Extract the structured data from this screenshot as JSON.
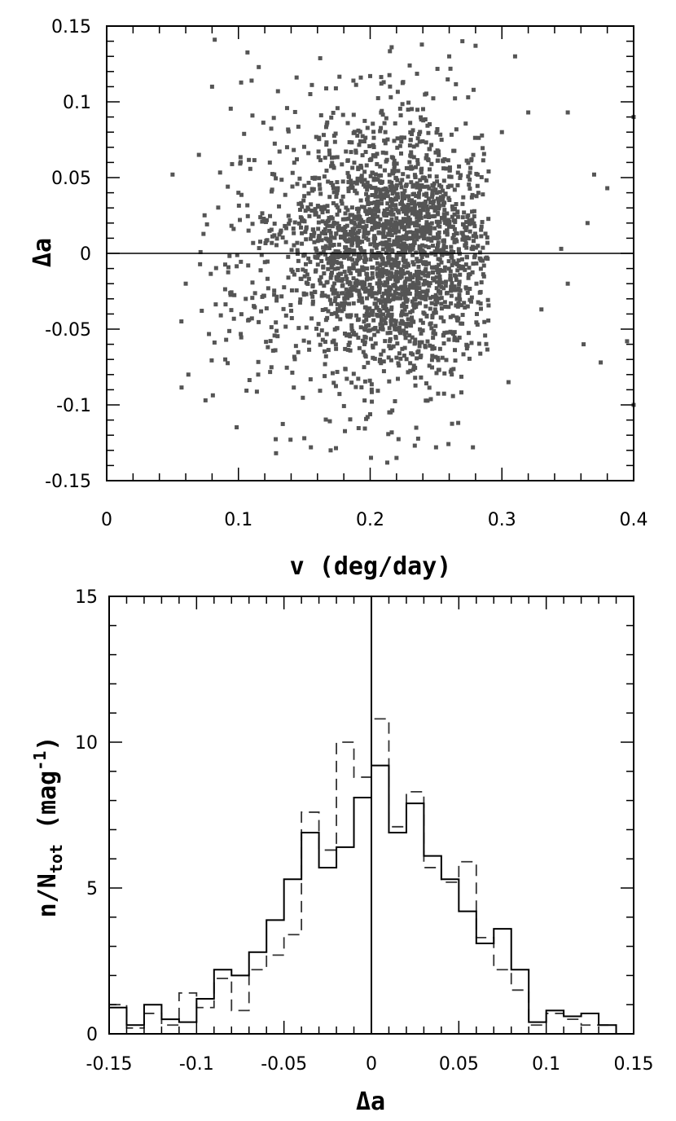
{
  "chart_data": [
    {
      "type": "scatter",
      "xlabel": "v (deg/day)",
      "ylabel": "Δa",
      "xlim": [
        0,
        0.4
      ],
      "ylim": [
        -0.15,
        0.15
      ],
      "x_ticks": [
        "0",
        "0.1",
        "0.2",
        "0.3",
        "0.4"
      ],
      "y_ticks": [
        "-0.15",
        "-0.1",
        "-0.05",
        "0",
        "0.05",
        "0.1",
        "0.15"
      ],
      "reference_line": {
        "axis": "y",
        "value": 0
      },
      "grid": false,
      "legend": "none",
      "marker_color": "#555555",
      "point_count_estimate": 2400,
      "point_distribution": {
        "core": {
          "x_mean": 0.225,
          "x_sd": 0.035,
          "y_mean": 0.005,
          "y_sd": 0.04,
          "share": 0.6
        },
        "broad": {
          "x_mean": 0.2,
          "x_sd": 0.055,
          "y_mean": 0.0,
          "y_sd": 0.05,
          "share": 0.4
        }
      },
      "points_sample": [
        [
          0.05,
          0.052
        ],
        [
          0.06,
          -0.02
        ],
        [
          0.062,
          -0.08
        ],
        [
          0.07,
          0.065
        ],
        [
          0.075,
          -0.097
        ],
        [
          0.08,
          0.11
        ],
        [
          0.082,
          0.141
        ],
        [
          0.09,
          -0.07
        ],
        [
          0.1,
          0.04
        ],
        [
          0.11,
          0.114
        ],
        [
          0.115,
          -0.08
        ],
        [
          0.13,
          0.107
        ],
        [
          0.15,
          -0.122
        ],
        [
          0.155,
          -0.128
        ],
        [
          0.17,
          -0.13
        ],
        [
          0.2,
          0.117
        ],
        [
          0.22,
          -0.135
        ],
        [
          0.23,
          0.124
        ],
        [
          0.25,
          -0.128
        ],
        [
          0.26,
          0.13
        ],
        [
          0.27,
          0.14
        ],
        [
          0.278,
          -0.128
        ],
        [
          0.28,
          0.137
        ],
        [
          0.3,
          0.08
        ],
        [
          0.305,
          -0.085
        ],
        [
          0.31,
          0.13
        ],
        [
          0.32,
          0.093
        ],
        [
          0.33,
          -0.037
        ],
        [
          0.345,
          0.003
        ],
        [
          0.35,
          0.093
        ],
        [
          0.35,
          -0.02
        ],
        [
          0.362,
          -0.06
        ],
        [
          0.365,
          0.02
        ],
        [
          0.37,
          0.052
        ],
        [
          0.375,
          -0.072
        ],
        [
          0.38,
          0.043
        ],
        [
          0.395,
          -0.058
        ],
        [
          0.4,
          0.09
        ],
        [
          0.4,
          -0.1
        ]
      ]
    },
    {
      "type": "histogram",
      "xlabel": "Δa",
      "ylabel": "n/N_tot (mag^-1)",
      "ylabel_parts": {
        "n": "n/N",
        "sub": "tot",
        "unit_open": " (mag",
        "sup": "-1",
        "unit_close": ")"
      },
      "xlim": [
        -0.15,
        0.15
      ],
      "ylim": [
        0,
        15
      ],
      "x_ticks": [
        "-0.15",
        "-0.1",
        "-0.05",
        "0",
        "0.05",
        "0.1",
        "0.15"
      ],
      "y_ticks": [
        "0",
        "5",
        "10",
        "15"
      ],
      "reference_line": {
        "axis": "x",
        "value": 0
      },
      "grid": false,
      "legend": "none",
      "bin_edges": [
        -0.15,
        -0.14,
        -0.13,
        -0.12,
        -0.11,
        -0.1,
        -0.09,
        -0.08,
        -0.07,
        -0.06,
        -0.05,
        -0.04,
        -0.03,
        -0.02,
        -0.01,
        0.0,
        0.01,
        0.02,
        0.03,
        0.04,
        0.05,
        0.06,
        0.07,
        0.08,
        0.09,
        0.1,
        0.11,
        0.12,
        0.13,
        0.14
      ],
      "series": [
        {
          "style": "solid",
          "values": [
            0.9,
            0.3,
            1.0,
            0.5,
            0.4,
            1.2,
            2.2,
            2.0,
            2.8,
            3.9,
            5.3,
            6.9,
            5.7,
            6.4,
            8.1,
            9.2,
            6.9,
            7.9,
            6.1,
            5.3,
            4.2,
            3.1,
            3.6,
            2.2,
            0.4,
            0.8,
            0.6,
            0.7,
            0.3
          ]
        },
        {
          "style": "dashed",
          "values": [
            1.0,
            0.2,
            0.7,
            0.3,
            1.4,
            0.9,
            1.9,
            0.8,
            2.2,
            2.7,
            3.4,
            7.6,
            6.3,
            10.0,
            8.8,
            10.8,
            7.1,
            8.3,
            5.7,
            5.2,
            5.9,
            3.3,
            2.2,
            1.5,
            0.3,
            0.7,
            0.5,
            0.3,
            0.3
          ]
        }
      ]
    }
  ]
}
